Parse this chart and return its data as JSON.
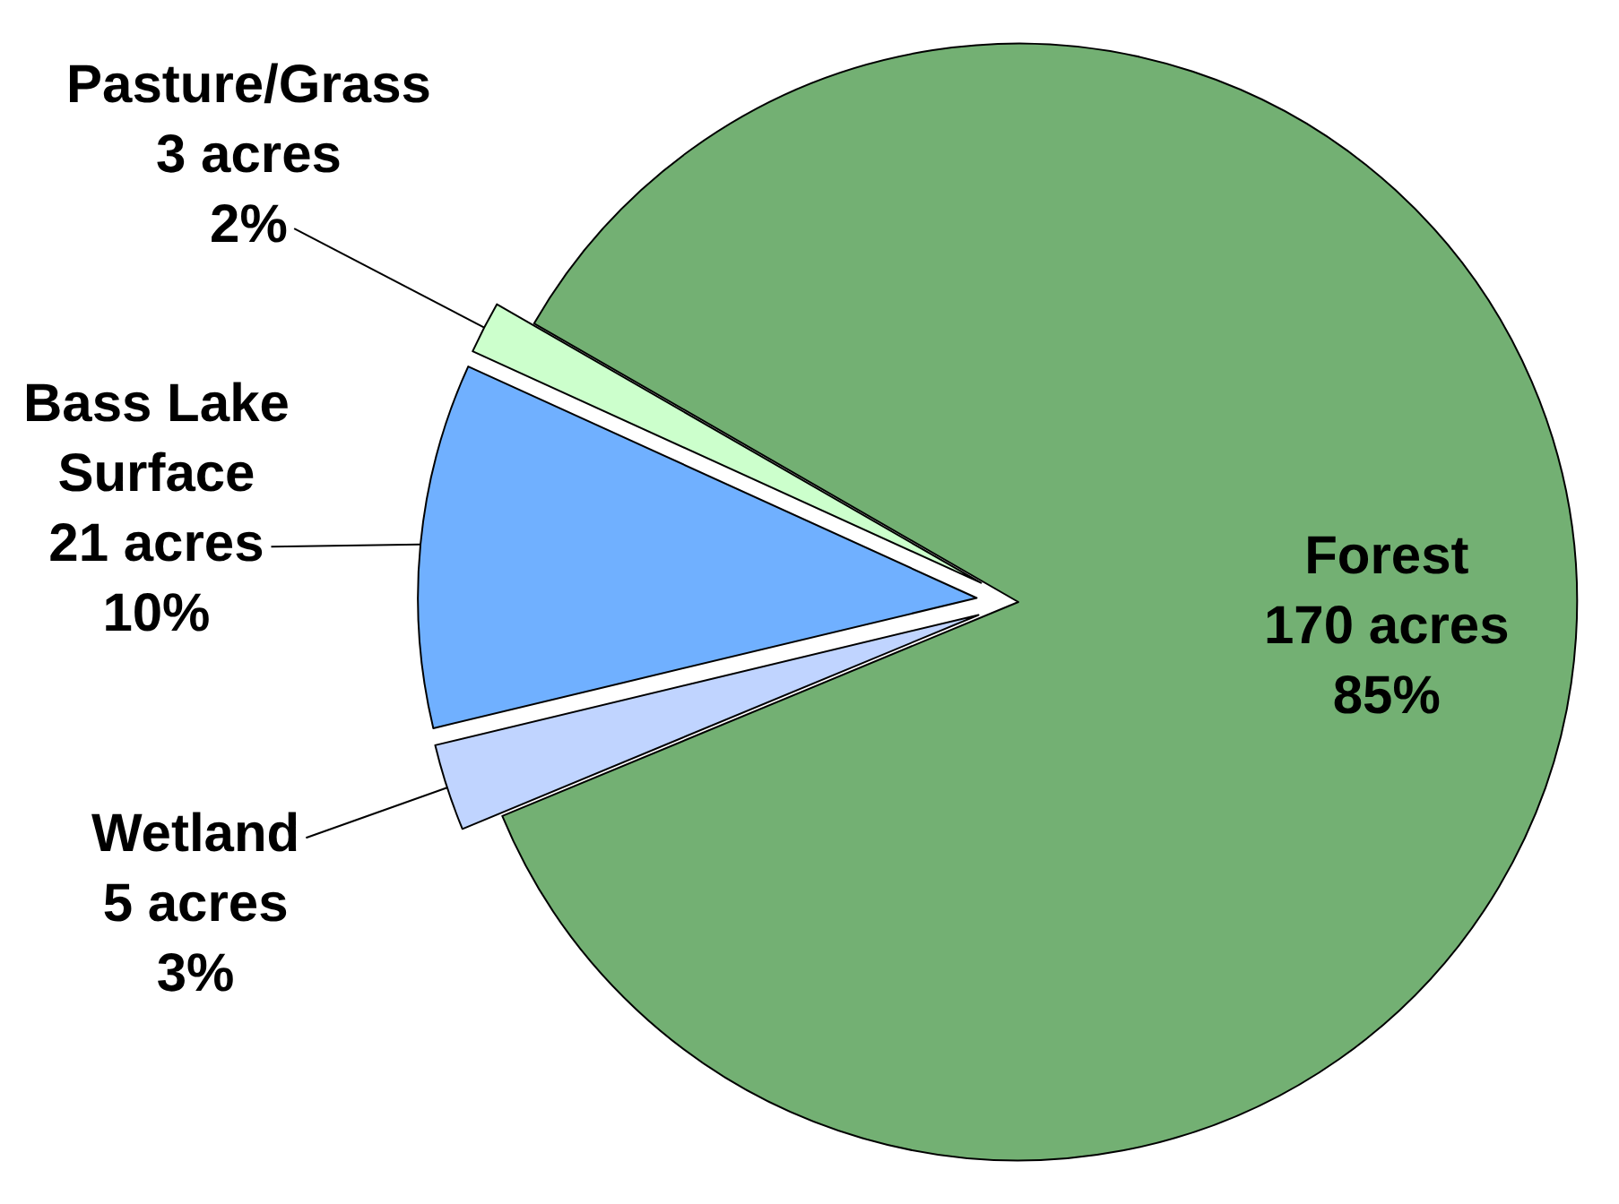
{
  "chart_data": {
    "type": "pie",
    "categories": [
      "Pasture/Grass",
      "Bass Lake Surface",
      "Wetland",
      "Forest"
    ],
    "values": [
      3,
      21,
      5,
      170
    ],
    "colors": [
      "#ccffcc",
      "#70b0ff",
      "#c0d4ff",
      "#73b073"
    ],
    "value_labels": [
      "3 acres\n2%",
      "21 acres\n10%",
      "5 acres\n3%",
      "170 acres\n85%"
    ]
  }
}
